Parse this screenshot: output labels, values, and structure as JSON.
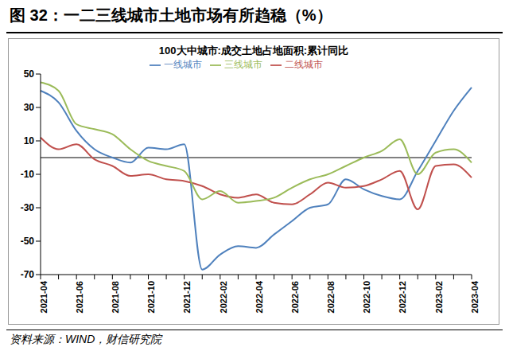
{
  "header": {
    "title": "图 32：一二三线城市土地市场有所趋稳（%）",
    "source": "资料来源：WIND，财信研究院"
  },
  "chart_data": {
    "type": "line",
    "title": "100大中城市:成交土地占地面积:累计同比",
    "categories": [
      "2021-04",
      null,
      "2021-06",
      null,
      "2021-08",
      null,
      "2021-10",
      null,
      "2021-12",
      null,
      "2022-02",
      null,
      "2022-04",
      null,
      "2022-06",
      null,
      "2022-08",
      null,
      "2022-10",
      null,
      "2022-12",
      null,
      "2023-02",
      null,
      "2023-04"
    ],
    "series": [
      {
        "name": "一线城市",
        "color": "#4f81bd",
        "values": [
          40,
          33,
          16,
          5,
          0,
          -3,
          6,
          5,
          8,
          -67,
          -58,
          -53,
          -54,
          -46,
          -38,
          -30,
          -28,
          -13,
          -19,
          -23,
          -25,
          -8,
          10,
          28,
          42
        ]
      },
      {
        "name": "二线城市",
        "color": "#c0504d",
        "values": [
          12,
          5,
          8,
          -1,
          -5,
          -11,
          -10,
          -13,
          -14,
          -17,
          -22,
          -24,
          -22,
          -27,
          -28,
          -22,
          -15,
          -18,
          -17,
          -13,
          -8,
          -31,
          -5,
          -4,
          -12
        ]
      },
      {
        "name": "三线城市",
        "color": "#9bbb59",
        "values": [
          45,
          40,
          20,
          17,
          14,
          5,
          -2,
          -5,
          -8,
          -25,
          -20,
          -27,
          -26,
          -24,
          -18,
          -13,
          -10,
          -5,
          0,
          4,
          11,
          -10,
          3,
          5,
          -3
        ]
      }
    ],
    "ylim": [
      -70,
      50
    ],
    "yticks": [
      -70,
      -50,
      -30,
      -10,
      10,
      30,
      50
    ],
    "legend": "top",
    "grid": false
  }
}
